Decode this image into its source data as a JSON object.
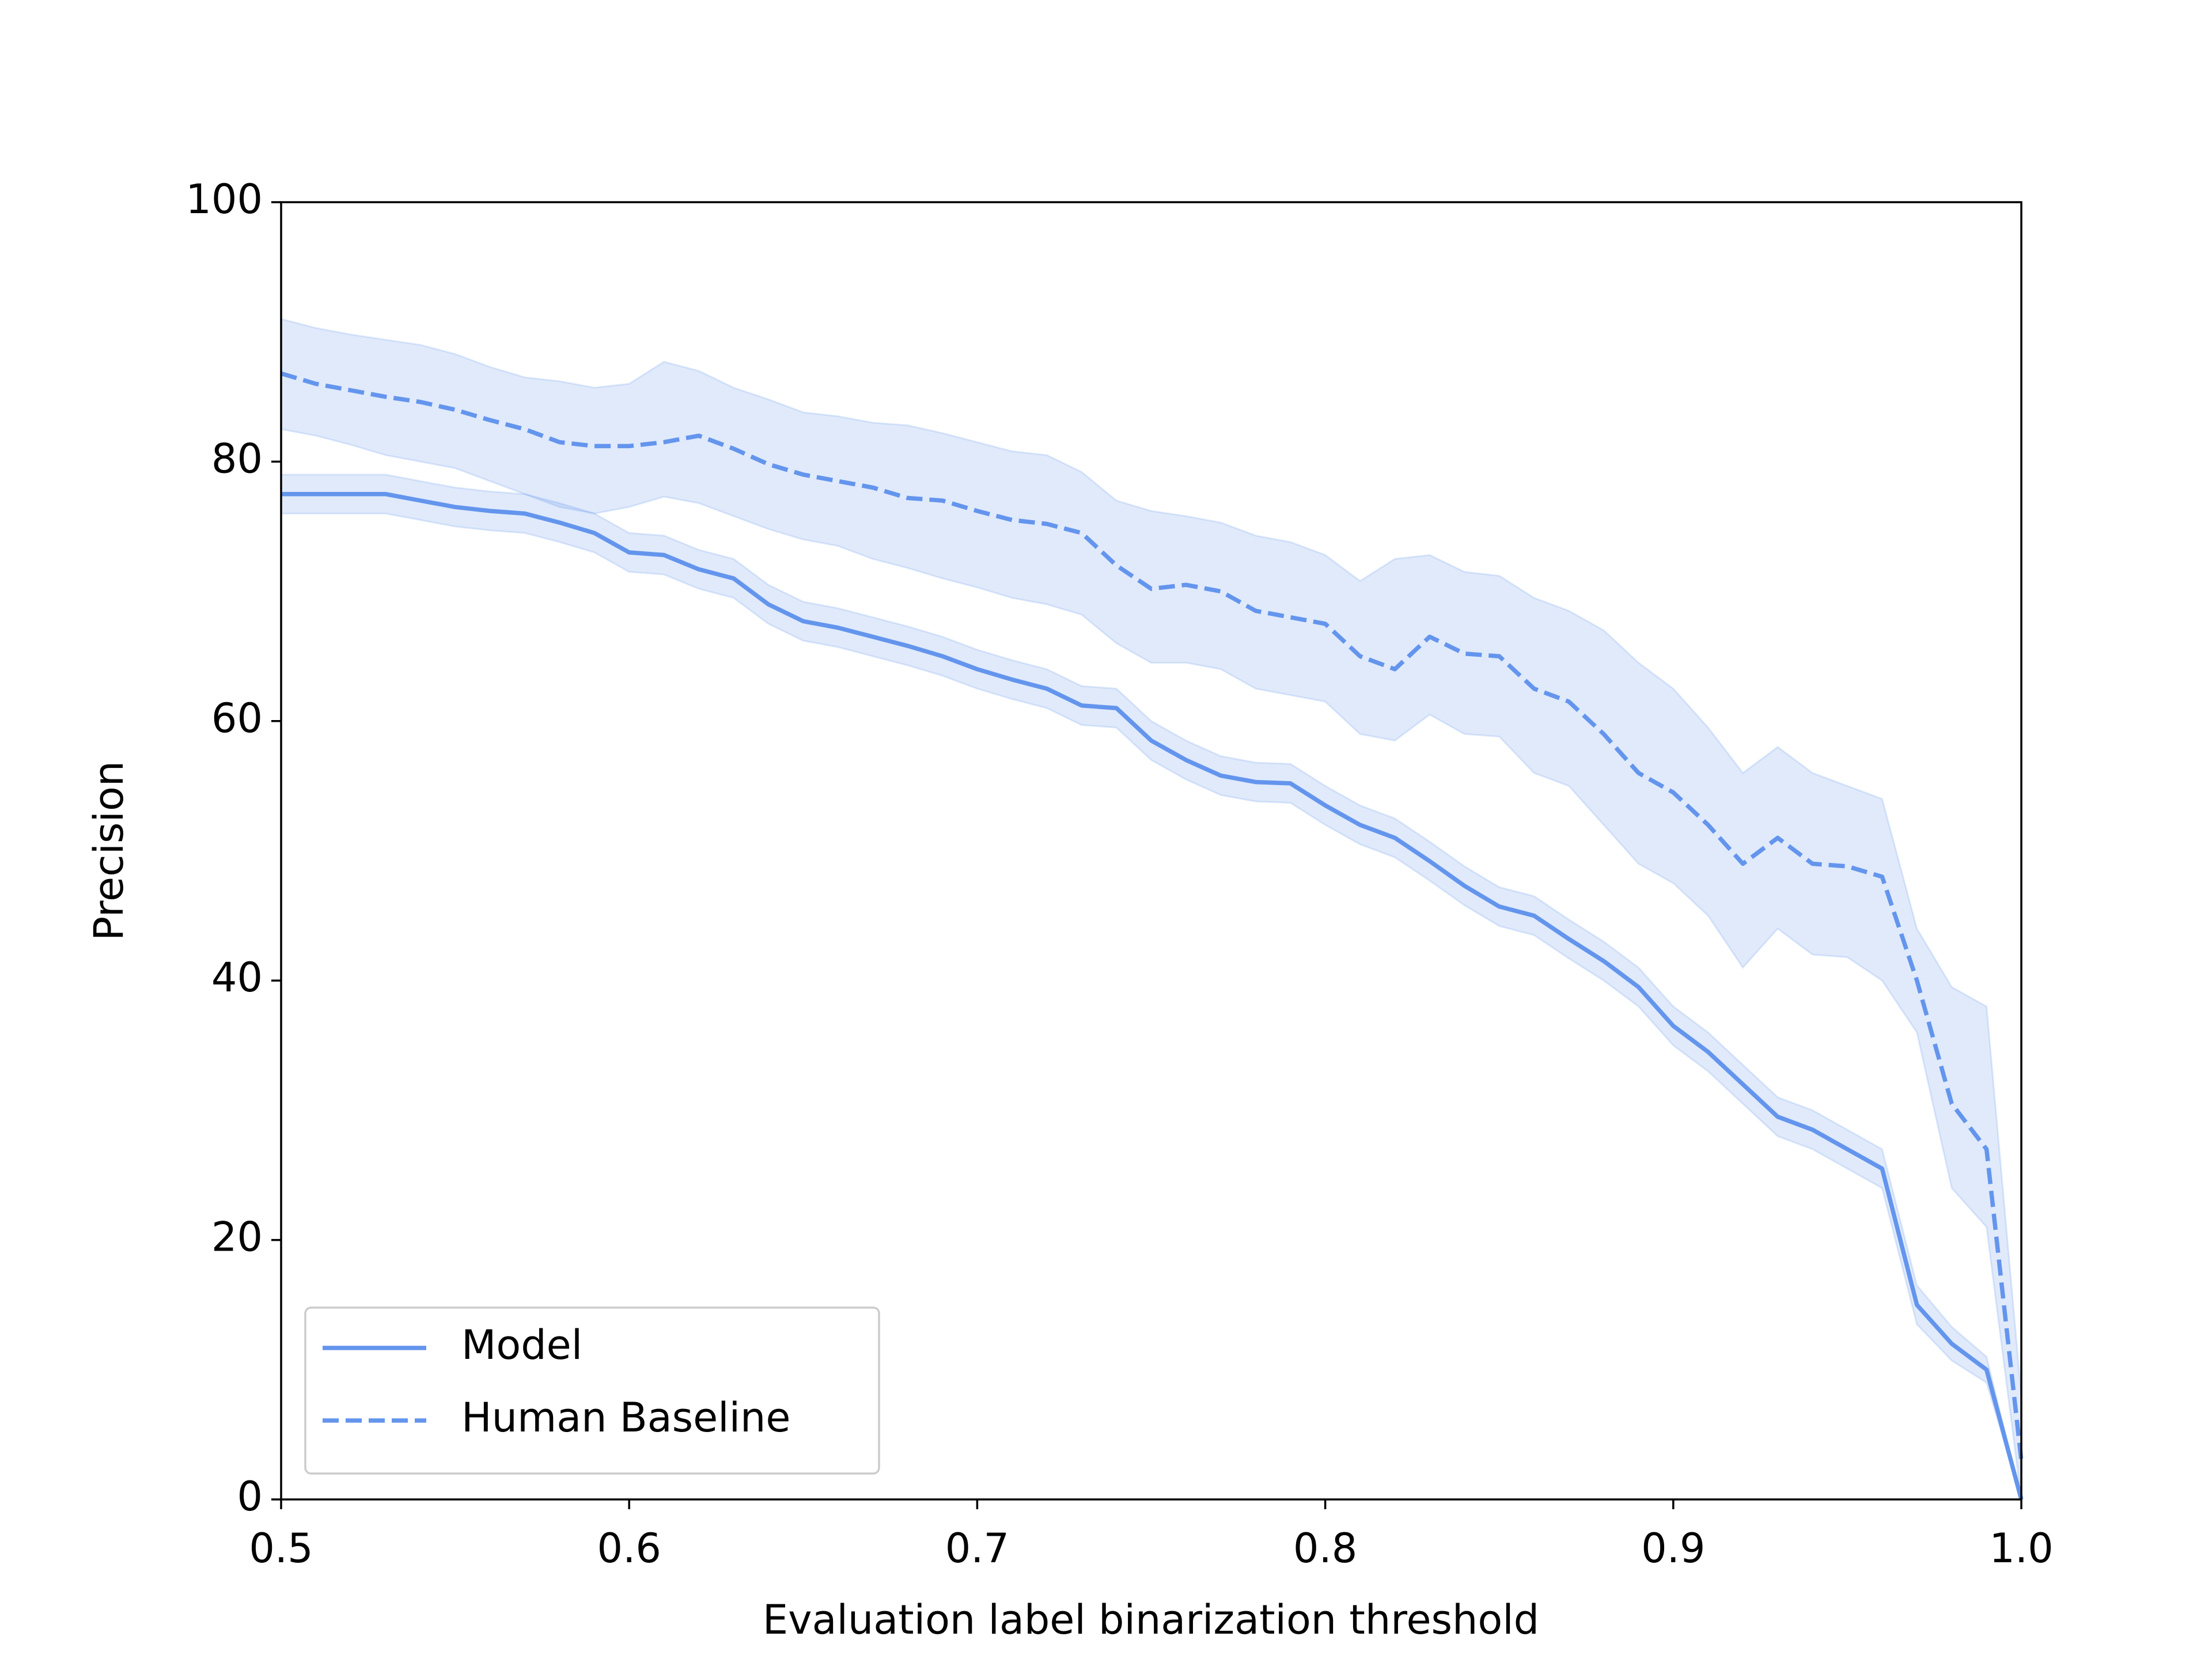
{
  "chart_data": {
    "type": "line",
    "xlabel": "Evaluation label binarization threshold",
    "ylabel": "Precision",
    "x": [
      0.5,
      0.51,
      0.52,
      0.53,
      0.54,
      0.55,
      0.56,
      0.57,
      0.58,
      0.59,
      0.6,
      0.61,
      0.62,
      0.63,
      0.64,
      0.65,
      0.66,
      0.67,
      0.68,
      0.69,
      0.7,
      0.71,
      0.72,
      0.73,
      0.74,
      0.75,
      0.76,
      0.77,
      0.78,
      0.79,
      0.8,
      0.81,
      0.82,
      0.83,
      0.84,
      0.85,
      0.86,
      0.87,
      0.88,
      0.89,
      0.9,
      0.91,
      0.92,
      0.93,
      0.94,
      0.95,
      0.96,
      0.97,
      0.98,
      0.99,
      1
    ],
    "series": [
      {
        "name": "Model",
        "color": "#6495ed",
        "linestyle": "solid",
        "values": [
          77.5,
          77.5,
          77.5,
          77.5,
          77,
          76.5,
          76.2,
          76,
          75.3,
          74.5,
          73,
          72.8,
          71.7,
          71,
          69,
          67.7,
          67.2,
          66.5,
          65.8,
          65,
          64,
          63.2,
          62.5,
          61.2,
          61,
          58.5,
          57,
          55.8,
          55.3,
          55.2,
          53.5,
          52,
          51,
          49.2,
          47.3,
          45.7,
          45,
          43.2,
          41.5,
          39.5,
          36.5,
          34.5,
          32,
          29.5,
          28.5,
          27,
          25.5,
          15,
          12,
          10,
          0
        ],
        "upper": [
          79,
          79,
          79,
          79,
          78.5,
          78,
          77.7,
          77.5,
          76.8,
          76,
          74.5,
          74.3,
          73.2,
          72.5,
          70.5,
          69.2,
          68.7,
          68,
          67.3,
          66.5,
          65.5,
          64.7,
          64,
          62.7,
          62.5,
          60,
          58.5,
          57.3,
          56.8,
          56.7,
          55,
          53.5,
          52.5,
          50.7,
          48.8,
          47.2,
          46.5,
          44.7,
          43,
          41,
          38,
          36,
          33.5,
          31,
          30,
          28.5,
          27,
          16.5,
          13.3,
          11,
          0
        ],
        "lower": [
          76,
          76,
          76,
          76,
          75.5,
          75,
          74.7,
          74.5,
          73.8,
          73,
          71.5,
          71.3,
          70.2,
          69.5,
          67.5,
          66.2,
          65.7,
          65,
          64.3,
          63.5,
          62.5,
          61.7,
          61,
          59.7,
          59.5,
          57,
          55.5,
          54.3,
          53.8,
          53.7,
          52,
          50.5,
          49.5,
          47.7,
          45.8,
          44.2,
          43.5,
          41.7,
          40,
          38,
          35,
          33,
          30.5,
          28,
          27,
          25.5,
          24,
          13.5,
          10.7,
          9,
          0
        ]
      },
      {
        "name": "Human Baseline",
        "color": "#6495ed",
        "linestyle": "dashed",
        "values": [
          86.8,
          86,
          85.5,
          85,
          84.6,
          84,
          83.2,
          82.5,
          81.5,
          81.2,
          81.2,
          81.5,
          82,
          81,
          79.8,
          79,
          78.5,
          78,
          77.2,
          77,
          76.2,
          75.5,
          75.2,
          74.5,
          72,
          70.2,
          70.5,
          70,
          68.5,
          68,
          67.5,
          65,
          64,
          66.5,
          65.2,
          65,
          62.5,
          61.5,
          59,
          56,
          54.5,
          52,
          49,
          51,
          49,
          48.8,
          48,
          40,
          30.5,
          27,
          3
        ],
        "upper": [
          91,
          90.3,
          89.8,
          89.4,
          89,
          88.3,
          87.3,
          86.5,
          86.2,
          85.7,
          86,
          87.7,
          87,
          85.7,
          84.8,
          83.8,
          83.5,
          83,
          82.8,
          82.2,
          81.5,
          80.8,
          80.5,
          79.2,
          77,
          76.2,
          75.8,
          75.3,
          74.3,
          73.8,
          72.8,
          70.8,
          72.5,
          72.8,
          71.5,
          71.2,
          69.5,
          68.5,
          67,
          64.5,
          62.5,
          59.5,
          56,
          58,
          56,
          55,
          54,
          44,
          39.5,
          38,
          8
        ],
        "lower": [
          82.5,
          82,
          81.3,
          80.5,
          80,
          79.5,
          78.5,
          77.5,
          76.5,
          76,
          76.5,
          77.3,
          76.8,
          75.8,
          74.8,
          74,
          73.5,
          72.5,
          71.8,
          71,
          70.3,
          69.5,
          69,
          68.2,
          66,
          64.5,
          64.5,
          64,
          62.5,
          62,
          61.5,
          59,
          58.5,
          60.5,
          59,
          58.8,
          56,
          55,
          52,
          49,
          47.5,
          45,
          41,
          44,
          42,
          41.8,
          40,
          36,
          24,
          21,
          0
        ]
      }
    ],
    "xlim": [
      0.5,
      1
    ],
    "ylim": [
      0,
      100
    ],
    "xticks": [
      0.5,
      0.6,
      0.7,
      0.8,
      0.9,
      {
        "value": 1,
        "label": "1.0"
      }
    ],
    "yticks": [
      0,
      20,
      40,
      60,
      80,
      100
    ],
    "grid": false,
    "legend": "lower left"
  }
}
